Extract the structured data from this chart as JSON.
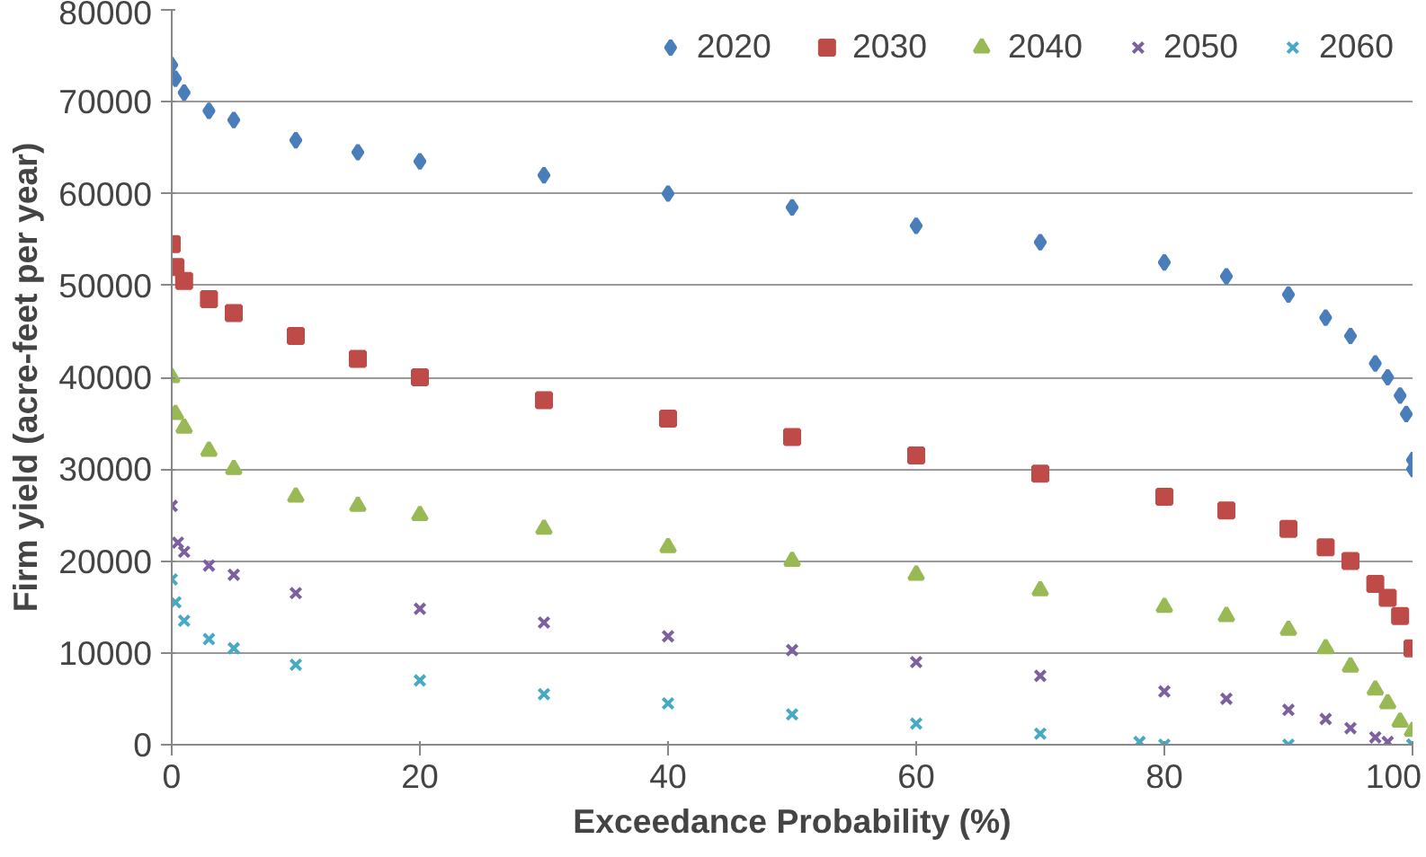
{
  "chart_data": {
    "type": "scatter",
    "xlabel": "Exceedance Probability (%)",
    "ylabel": "Firm yield (acre-feet per year)",
    "xlim": [
      0,
      100
    ],
    "xticks": [
      0,
      20,
      40,
      60,
      80,
      100
    ],
    "ylim": [
      0,
      80000
    ],
    "yticks": [
      0,
      10000,
      20000,
      30000,
      40000,
      50000,
      60000,
      70000,
      80000
    ],
    "grid": "y",
    "legend": "top right",
    "series": [
      {
        "name": "2020",
        "color": "#4a7ebb",
        "marker": "diamond",
        "x": [
          0,
          0.3,
          1,
          3,
          5,
          10,
          15,
          20,
          30,
          40,
          50,
          60,
          70,
          80,
          85,
          90,
          93,
          95,
          97,
          98,
          99,
          99.5,
          100,
          100
        ],
        "values": [
          74000,
          72500,
          71000,
          69000,
          68000,
          65800,
          64500,
          63500,
          62000,
          60000,
          58500,
          56500,
          54700,
          52500,
          51000,
          49000,
          46500,
          44500,
          41500,
          40000,
          38000,
          36000,
          31000,
          30000
        ]
      },
      {
        "name": "2030",
        "color": "#be4b48",
        "marker": "square",
        "x": [
          0,
          0.3,
          1,
          3,
          5,
          10,
          15,
          20,
          30,
          40,
          50,
          60,
          70,
          80,
          85,
          90,
          93,
          95,
          97,
          98,
          99,
          100
        ],
        "values": [
          54500,
          52000,
          50500,
          48500,
          47000,
          44500,
          42000,
          40000,
          37500,
          35500,
          33500,
          31500,
          29500,
          27000,
          25500,
          23500,
          21500,
          20000,
          17500,
          16000,
          14000,
          10500
        ]
      },
      {
        "name": "2040",
        "color": "#98b954",
        "marker": "triangle",
        "x": [
          0,
          0.3,
          1,
          3,
          5,
          10,
          15,
          20,
          30,
          40,
          50,
          60,
          70,
          80,
          85,
          90,
          93,
          95,
          97,
          98,
          99,
          100
        ],
        "values": [
          40000,
          36000,
          34500,
          32000,
          30000,
          27000,
          26000,
          25000,
          23500,
          21500,
          20000,
          18500,
          16800,
          15000,
          14000,
          12500,
          10500,
          8500,
          6000,
          4500,
          2500,
          1500
        ]
      },
      {
        "name": "2050",
        "color": "#7d60a0",
        "marker": "cross",
        "x": [
          0,
          0.5,
          1,
          3,
          5,
          10,
          20,
          30,
          40,
          50,
          60,
          70,
          80,
          85,
          90,
          93,
          95,
          97,
          98,
          100
        ],
        "values": [
          26000,
          22000,
          21000,
          19500,
          18500,
          16500,
          14800,
          13300,
          11800,
          10300,
          9000,
          7500,
          5800,
          5000,
          3800,
          2800,
          1800,
          800,
          300,
          0
        ]
      },
      {
        "name": "2060",
        "color": "#46aac5",
        "marker": "cross",
        "x": [
          0,
          0.3,
          1,
          3,
          5,
          10,
          20,
          30,
          40,
          50,
          60,
          70,
          78,
          80,
          90,
          100
        ],
        "values": [
          18000,
          15500,
          13500,
          11500,
          10500,
          8700,
          7000,
          5500,
          4500,
          3300,
          2300,
          1200,
          300,
          0,
          0,
          0
        ]
      }
    ]
  }
}
